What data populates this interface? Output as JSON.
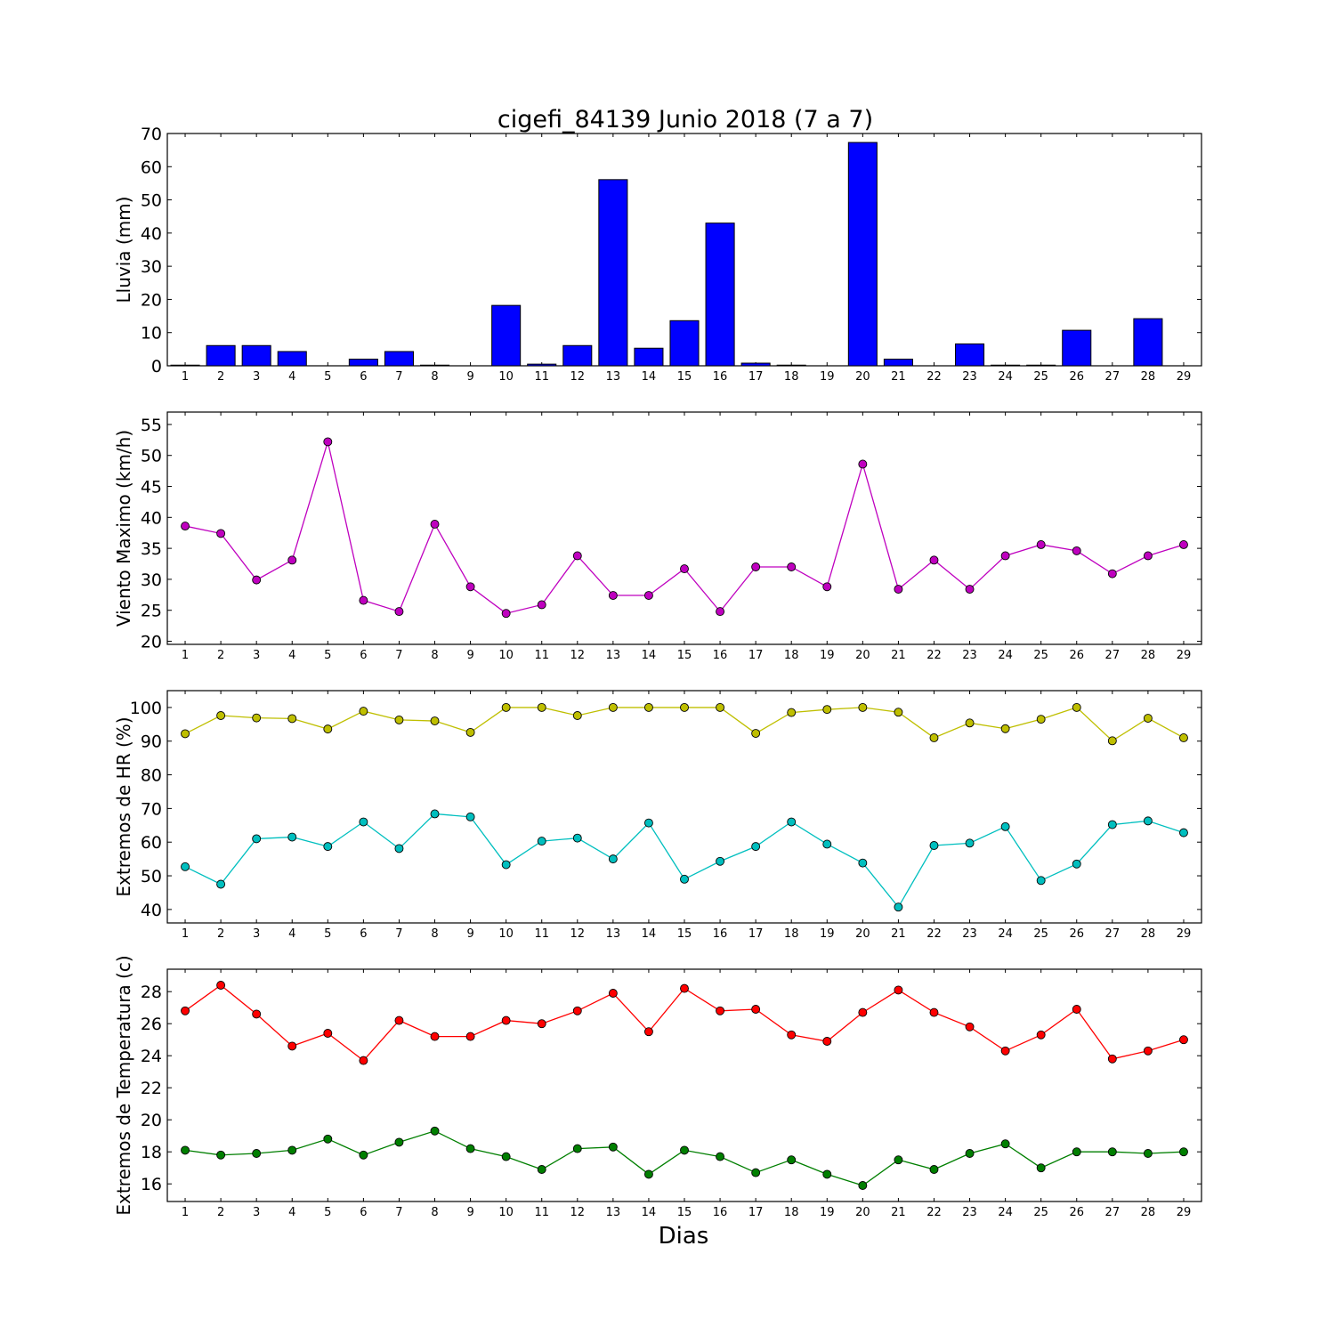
{
  "title": "cigefi_84139 Junio 2018  (7 a 7)",
  "xlabel": "Dias",
  "chart_data": [
    {
      "type": "bar",
      "ylabel": "Lluvia (mm)",
      "ylim": [
        0,
        70
      ],
      "yticks": [
        0,
        10,
        20,
        30,
        40,
        50,
        60,
        70
      ],
      "categories": [
        1,
        2,
        3,
        4,
        5,
        6,
        7,
        8,
        9,
        10,
        11,
        12,
        13,
        14,
        15,
        16,
        17,
        18,
        19,
        20,
        21,
        22,
        23,
        24,
        25,
        26,
        27,
        28,
        29
      ],
      "series": [
        {
          "values": [
            0.2,
            6.1,
            6.1,
            4.3,
            0,
            2.0,
            4.3,
            0.2,
            0,
            18.2,
            0.5,
            6.1,
            56.1,
            5.3,
            13.6,
            43.0,
            0.8,
            0.2,
            0,
            67.3,
            2.0,
            0,
            6.6,
            0.2,
            0.2,
            10.7,
            0,
            14.2,
            0
          ],
          "color": "#0000ff"
        }
      ]
    },
    {
      "type": "line",
      "ylabel": "Viento Maximo (km/h)",
      "ylim": [
        19.5,
        57
      ],
      "yticks": [
        20,
        25,
        30,
        35,
        40,
        45,
        50,
        55
      ],
      "x": [
        1,
        2,
        3,
        4,
        5,
        6,
        7,
        8,
        9,
        10,
        11,
        12,
        13,
        14,
        15,
        16,
        17,
        18,
        19,
        20,
        21,
        22,
        23,
        24,
        25,
        26,
        27,
        28,
        29
      ],
      "series": [
        {
          "values": [
            38.6,
            37.4,
            29.9,
            33.1,
            52.2,
            26.6,
            24.8,
            38.9,
            28.8,
            24.5,
            25.9,
            33.8,
            27.4,
            27.4,
            31.7,
            24.8,
            32.0,
            32.0,
            28.8,
            48.6,
            28.4,
            33.1,
            28.4,
            33.8,
            35.6,
            34.6,
            30.9,
            33.8,
            35.6
          ],
          "color": "#bf00bf"
        }
      ]
    },
    {
      "type": "line",
      "ylabel": "Extremos de HR (%)",
      "ylim": [
        36,
        105
      ],
      "yticks": [
        40,
        50,
        60,
        70,
        80,
        90,
        100
      ],
      "x": [
        1,
        2,
        3,
        4,
        5,
        6,
        7,
        8,
        9,
        10,
        11,
        12,
        13,
        14,
        15,
        16,
        17,
        18,
        19,
        20,
        21,
        22,
        23,
        24,
        25,
        26,
        27,
        28,
        29
      ],
      "series": [
        {
          "values": [
            92.2,
            97.6,
            96.9,
            96.7,
            93.6,
            98.9,
            96.3,
            96.0,
            92.6,
            100,
            100,
            97.6,
            100,
            100,
            100,
            100,
            92.3,
            98.5,
            99.4,
            100,
            98.6,
            91.0,
            95.4,
            93.7,
            96.5,
            100,
            90.1,
            96.8,
            91.0
          ],
          "color": "#bfbf00"
        },
        {
          "values": [
            52.7,
            47.5,
            61.0,
            61.5,
            58.7,
            66.0,
            58.1,
            68.4,
            67.5,
            53.3,
            60.3,
            61.2,
            55.0,
            65.7,
            49.0,
            54.3,
            58.7,
            66.0,
            59.4,
            53.8,
            40.7,
            59.0,
            59.7,
            64.6,
            48.6,
            53.5,
            65.2,
            66.3,
            62.8
          ],
          "color": "#00bfbf"
        }
      ]
    },
    {
      "type": "line",
      "ylabel": "Extremos de Temperatura (c)",
      "ylim": [
        14.9,
        29.4
      ],
      "yticks": [
        16,
        18,
        20,
        22,
        24,
        26,
        28
      ],
      "x": [
        1,
        2,
        3,
        4,
        5,
        6,
        7,
        8,
        9,
        10,
        11,
        12,
        13,
        14,
        15,
        16,
        17,
        18,
        19,
        20,
        21,
        22,
        23,
        24,
        25,
        26,
        27,
        28,
        29
      ],
      "series": [
        {
          "values": [
            26.8,
            28.4,
            26.6,
            24.6,
            25.4,
            23.7,
            26.2,
            25.2,
            25.2,
            26.2,
            26.0,
            26.8,
            27.9,
            25.5,
            28.2,
            26.8,
            26.9,
            25.3,
            24.9,
            26.7,
            28.1,
            26.7,
            25.8,
            24.3,
            25.3,
            26.9,
            23.8,
            24.3,
            25.0
          ],
          "color": "#ff0000"
        },
        {
          "values": [
            18.1,
            17.8,
            17.9,
            18.1,
            18.8,
            17.8,
            18.6,
            19.3,
            18.2,
            17.7,
            16.9,
            18.2,
            18.3,
            16.6,
            18.1,
            17.7,
            16.7,
            17.5,
            16.6,
            15.9,
            17.5,
            16.9,
            17.9,
            18.5,
            17.0,
            18.0,
            18.0,
            17.9,
            18.0
          ],
          "color": "#007f00"
        }
      ]
    }
  ]
}
